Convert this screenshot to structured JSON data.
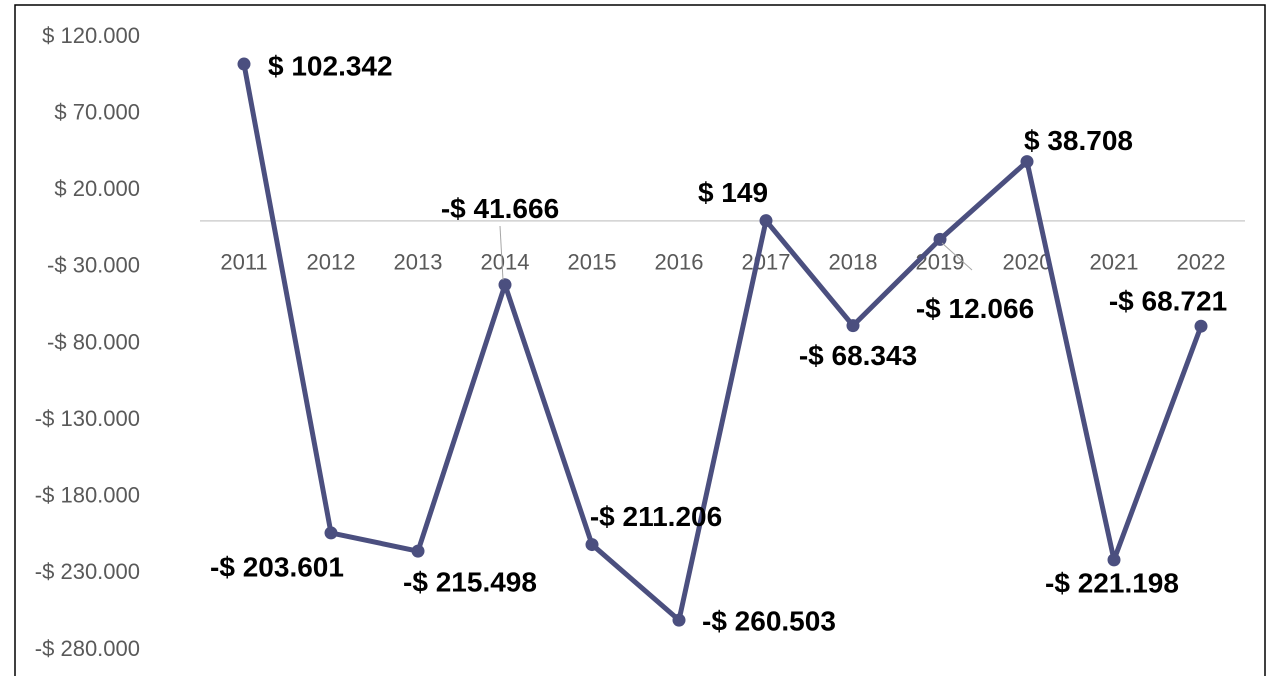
{
  "chart_data": {
    "type": "line",
    "categories": [
      "2011",
      "2012",
      "2013",
      "2014",
      "2015",
      "2016",
      "2017",
      "2018",
      "2019",
      "2020",
      "2021",
      "2022"
    ],
    "series": [
      {
        "color": "#4b4f7f",
        "values": [
          102342,
          -203601,
          -215498,
          -41666,
          -211206,
          -260503,
          149,
          -68343,
          -12066,
          38708,
          -221198,
          -68721
        ],
        "value_labels": [
          "$ 102.342",
          "-$ 203.601",
          "-$ 215.498",
          "-$ 41.666",
          "-$ 211.206",
          "-$ 260.503",
          "$ 149",
          "-$ 68.343",
          "-$ 12.066",
          "$ 38.708",
          "-$ 221.198",
          "-$ 68.721"
        ]
      }
    ],
    "ylim": [
      -280000,
      120000
    ],
    "yticks": [
      {
        "value": 120000,
        "label": "$ 120.000"
      },
      {
        "value": 70000,
        "label": "$ 70.000"
      },
      {
        "value": 20000,
        "label": "$ 20.000"
      },
      {
        "value": -30000,
        "label": "-$ 30.000"
      },
      {
        "value": -80000,
        "label": "-$ 80.000"
      },
      {
        "value": -130000,
        "label": "-$ 130.000"
      },
      {
        "value": -180000,
        "label": "-$ 180.000"
      },
      {
        "value": -230000,
        "label": "-$ 230.000"
      },
      {
        "value": -280000,
        "label": "-$ 280.000"
      }
    ]
  }
}
